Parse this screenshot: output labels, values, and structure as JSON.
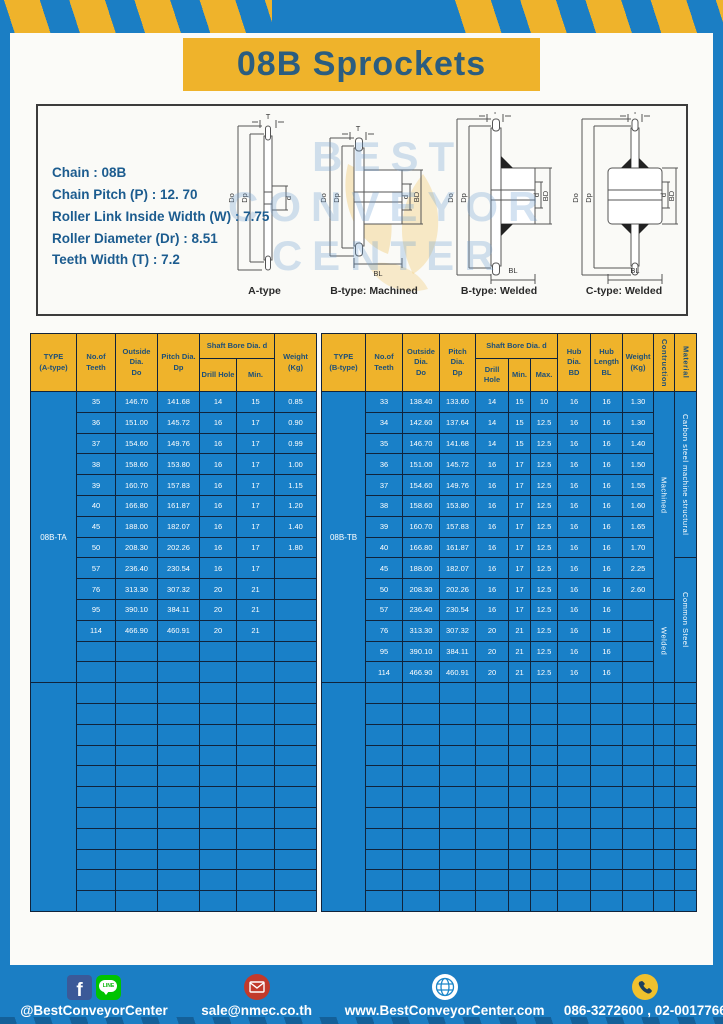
{
  "title": "08B Sprockets",
  "specs": {
    "lines": [
      "Chain  : 08B",
      "Chain Pitch (P)  :  12. 70",
      "Roller Link Inside Width (W)  :  7.75",
      "Roller Diameter (Dr)  : 8.51",
      "Teeth Width (T)  :  7.2"
    ]
  },
  "watermark": {
    "line1": "BEST",
    "line2": "CONVEYOR",
    "line3": "CENTER"
  },
  "drawings": {
    "dims": {
      "t": "T",
      "do": "Do",
      "dp": "Dp",
      "d": "d",
      "bd": "BD",
      "bl": "BL"
    },
    "labels": {
      "a": "A-type",
      "bm": "B-type: Machined",
      "bw": "B-type: Welded",
      "cw": "C-type: Welded"
    }
  },
  "tables": [
    {
      "name": "08B-TA table",
      "header_rows": [
        [
          {
            "t": "TYPE\n(A-type)",
            "rs": 2
          },
          {
            "t": "No.of\nTeeth",
            "rs": 2
          },
          {
            "t": "Outside\nDia.\nDo",
            "rs": 2
          },
          {
            "t": "Pitch Dia.\nDp",
            "rs": 2
          },
          {
            "t": "Shaft Bore Dia. d",
            "cs": 2
          },
          {
            "t": "Weight\n(Kg)",
            "rs": 2
          }
        ],
        [
          {
            "t": "Drill Hole"
          },
          {
            "t": "Min."
          }
        ]
      ],
      "groups": [
        [
          [
            {
              "t": "08B-TA",
              "rs": 14,
              "cls": "type"
            },
            {
              "t": "35"
            },
            {
              "t": "146.70"
            },
            {
              "t": "141.68"
            },
            {
              "t": "14"
            },
            {
              "t": "15"
            },
            {
              "t": "0.85"
            }
          ],
          [
            {
              "t": "36"
            },
            {
              "t": "151.00"
            },
            {
              "t": "145.72"
            },
            {
              "t": "16"
            },
            {
              "t": "17"
            },
            {
              "t": "0.90"
            }
          ],
          [
            {
              "t": "37"
            },
            {
              "t": "154.60"
            },
            {
              "t": "149.76"
            },
            {
              "t": "16"
            },
            {
              "t": "17"
            },
            {
              "t": "0.99"
            }
          ],
          [
            {
              "t": "38"
            },
            {
              "t": "158.60"
            },
            {
              "t": "153.80"
            },
            {
              "t": "16"
            },
            {
              "t": "17"
            },
            {
              "t": "1.00"
            }
          ],
          [
            {
              "t": "39"
            },
            {
              "t": "160.70"
            },
            {
              "t": "157.83"
            },
            {
              "t": "16"
            },
            {
              "t": "17"
            },
            {
              "t": "1.15"
            }
          ],
          [
            {
              "t": "40"
            },
            {
              "t": "166.80"
            },
            {
              "t": "161.87"
            },
            {
              "t": "16"
            },
            {
              "t": "17"
            },
            {
              "t": "1.20"
            }
          ],
          [
            {
              "t": "45"
            },
            {
              "t": "188.00"
            },
            {
              "t": "182.07"
            },
            {
              "t": "16"
            },
            {
              "t": "17"
            },
            {
              "t": "1.40"
            }
          ],
          [
            {
              "t": "50"
            },
            {
              "t": "208.30"
            },
            {
              "t": "202.26"
            },
            {
              "t": "16"
            },
            {
              "t": "17"
            },
            {
              "t": "1.80"
            }
          ],
          [
            {
              "t": "57"
            },
            {
              "t": "236.40"
            },
            {
              "t": "230.54"
            },
            {
              "t": "16"
            },
            {
              "t": "17"
            },
            {
              "t": ""
            }
          ],
          [
            {
              "t": "76"
            },
            {
              "t": "313.30"
            },
            {
              "t": "307.32"
            },
            {
              "t": "20"
            },
            {
              "t": "21"
            },
            {
              "t": ""
            }
          ],
          [
            {
              "t": "95"
            },
            {
              "t": "390.10"
            },
            {
              "t": "384.11"
            },
            {
              "t": "20"
            },
            {
              "t": "21"
            },
            {
              "t": ""
            }
          ],
          [
            {
              "t": "114"
            },
            {
              "t": "466.90"
            },
            {
              "t": "460.91"
            },
            {
              "t": "20"
            },
            {
              "t": "21"
            },
            {
              "t": ""
            }
          ],
          [
            {
              "t": ""
            },
            {
              "t": ""
            },
            {
              "t": ""
            },
            {
              "t": ""
            },
            {
              "t": ""
            },
            {
              "t": ""
            }
          ],
          [
            {
              "t": ""
            },
            {
              "t": ""
            },
            {
              "t": ""
            },
            {
              "t": ""
            },
            {
              "t": ""
            },
            {
              "t": ""
            }
          ]
        ]
      ],
      "empty_group": {
        "rows": 11,
        "cols": 6
      }
    },
    {
      "name": "08B-TB table",
      "header_rows": [
        [
          {
            "t": "TYPE\n(B-type)",
            "rs": 2
          },
          {
            "t": "No.of\nTeeth",
            "rs": 2
          },
          {
            "t": "Outside\nDia.\nDo",
            "rs": 2
          },
          {
            "t": "Pitch Dia.\nDp",
            "rs": 2
          },
          {
            "t": "Shaft Bore Dia. d",
            "cs": 3
          },
          {
            "t": "Hub Dia.\nBD",
            "rs": 2
          },
          {
            "t": "Hub\nLength\nBL",
            "rs": 2
          },
          {
            "t": "Weight\n(Kg)",
            "rs": 2
          },
          {
            "t": "Contruction",
            "rs": 2,
            "cls": "vert"
          },
          {
            "t": "Material",
            "rs": 2,
            "cls": "vert"
          }
        ],
        [
          {
            "t": "Drill Hole"
          },
          {
            "t": "Min."
          },
          {
            "t": "Max."
          }
        ]
      ],
      "groups": [
        [
          [
            {
              "t": "08B-TB",
              "rs": 14,
              "cls": "type"
            },
            {
              "t": "33"
            },
            {
              "t": "138.40"
            },
            {
              "t": "133.60"
            },
            {
              "t": "14"
            },
            {
              "t": "15"
            },
            {
              "t": "10"
            },
            {
              "t": "16"
            },
            {
              "t": "16"
            },
            {
              "t": "1.30"
            },
            {
              "t": "Machined",
              "rs": 10,
              "cls": "vert"
            },
            {
              "t": "Carbon steel  machine structural",
              "rs": 8,
              "cls": "vert"
            }
          ],
          [
            {
              "t": "34"
            },
            {
              "t": "142.60"
            },
            {
              "t": "137.64"
            },
            {
              "t": "14"
            },
            {
              "t": "15"
            },
            {
              "t": "12.5"
            },
            {
              "t": "16"
            },
            {
              "t": "16"
            },
            {
              "t": "1.30"
            }
          ],
          [
            {
              "t": "35"
            },
            {
              "t": "146.70"
            },
            {
              "t": "141.68"
            },
            {
              "t": "14"
            },
            {
              "t": "15"
            },
            {
              "t": "12.5"
            },
            {
              "t": "16"
            },
            {
              "t": "16"
            },
            {
              "t": "1.40"
            }
          ],
          [
            {
              "t": "36"
            },
            {
              "t": "151.00"
            },
            {
              "t": "145.72"
            },
            {
              "t": "16"
            },
            {
              "t": "17"
            },
            {
              "t": "12.5"
            },
            {
              "t": "16"
            },
            {
              "t": "16"
            },
            {
              "t": "1.50"
            }
          ],
          [
            {
              "t": "37"
            },
            {
              "t": "154.60"
            },
            {
              "t": "149.76"
            },
            {
              "t": "16"
            },
            {
              "t": "17"
            },
            {
              "t": "12.5"
            },
            {
              "t": "16"
            },
            {
              "t": "16"
            },
            {
              "t": "1.55"
            }
          ],
          [
            {
              "t": "38"
            },
            {
              "t": "158.60"
            },
            {
              "t": "153.80"
            },
            {
              "t": "16"
            },
            {
              "t": "17"
            },
            {
              "t": "12.5"
            },
            {
              "t": "16"
            },
            {
              "t": "16"
            },
            {
              "t": "1.60"
            }
          ],
          [
            {
              "t": "39"
            },
            {
              "t": "160.70"
            },
            {
              "t": "157.83"
            },
            {
              "t": "16"
            },
            {
              "t": "17"
            },
            {
              "t": "12.5"
            },
            {
              "t": "16"
            },
            {
              "t": "16"
            },
            {
              "t": "1.65"
            }
          ],
          [
            {
              "t": "40"
            },
            {
              "t": "166.80"
            },
            {
              "t": "161.87"
            },
            {
              "t": "16"
            },
            {
              "t": "17"
            },
            {
              "t": "12.5"
            },
            {
              "t": "16"
            },
            {
              "t": "16"
            },
            {
              "t": "1.70"
            }
          ],
          [
            {
              "t": "45"
            },
            {
              "t": "188.00"
            },
            {
              "t": "182.07"
            },
            {
              "t": "16"
            },
            {
              "t": "17"
            },
            {
              "t": "12.5"
            },
            {
              "t": "16"
            },
            {
              "t": "16"
            },
            {
              "t": "2.25"
            },
            {
              "t": "Common  Steel",
              "rs": 6,
              "cls": "vert"
            }
          ],
          [
            {
              "t": "50"
            },
            {
              "t": "208.30"
            },
            {
              "t": "202.26"
            },
            {
              "t": "16"
            },
            {
              "t": "17"
            },
            {
              "t": "12.5"
            },
            {
              "t": "16"
            },
            {
              "t": "16"
            },
            {
              "t": "2.60"
            }
          ],
          [
            {
              "t": "57"
            },
            {
              "t": "236.40"
            },
            {
              "t": "230.54"
            },
            {
              "t": "16"
            },
            {
              "t": "17"
            },
            {
              "t": "12.5"
            },
            {
              "t": "16"
            },
            {
              "t": "16"
            },
            {
              "t": ""
            },
            {
              "t": "Welded",
              "rs": 4,
              "cls": "vert"
            }
          ],
          [
            {
              "t": "76"
            },
            {
              "t": "313.30"
            },
            {
              "t": "307.32"
            },
            {
              "t": "20"
            },
            {
              "t": "21"
            },
            {
              "t": "12.5"
            },
            {
              "t": "16"
            },
            {
              "t": "16"
            },
            {
              "t": ""
            }
          ],
          [
            {
              "t": "95"
            },
            {
              "t": "390.10"
            },
            {
              "t": "384.11"
            },
            {
              "t": "20"
            },
            {
              "t": "21"
            },
            {
              "t": "12.5"
            },
            {
              "t": "16"
            },
            {
              "t": "16"
            },
            {
              "t": ""
            }
          ],
          [
            {
              "t": "114"
            },
            {
              "t": "466.90"
            },
            {
              "t": "460.91"
            },
            {
              "t": "20"
            },
            {
              "t": "21"
            },
            {
              "t": "12.5"
            },
            {
              "t": "16"
            },
            {
              "t": "16"
            },
            {
              "t": ""
            }
          ]
        ]
      ],
      "empty_group": {
        "rows": 11,
        "cols": 11
      }
    }
  ],
  "footer": {
    "social_label": "@BestConveyorCenter",
    "email": "sale@nmec.co.th",
    "website": "www.BestConveyorCenter.com",
    "phones": "086-3272600 , 02-0017766",
    "line_badge": "LINE"
  },
  "colors": {
    "page_blue": "#1b7ec4",
    "table_cell_blue": "#1980c8",
    "accent_yellow": "#efb32b",
    "header_text_blue": "#1d4f78",
    "grid_line": "#10233b"
  }
}
